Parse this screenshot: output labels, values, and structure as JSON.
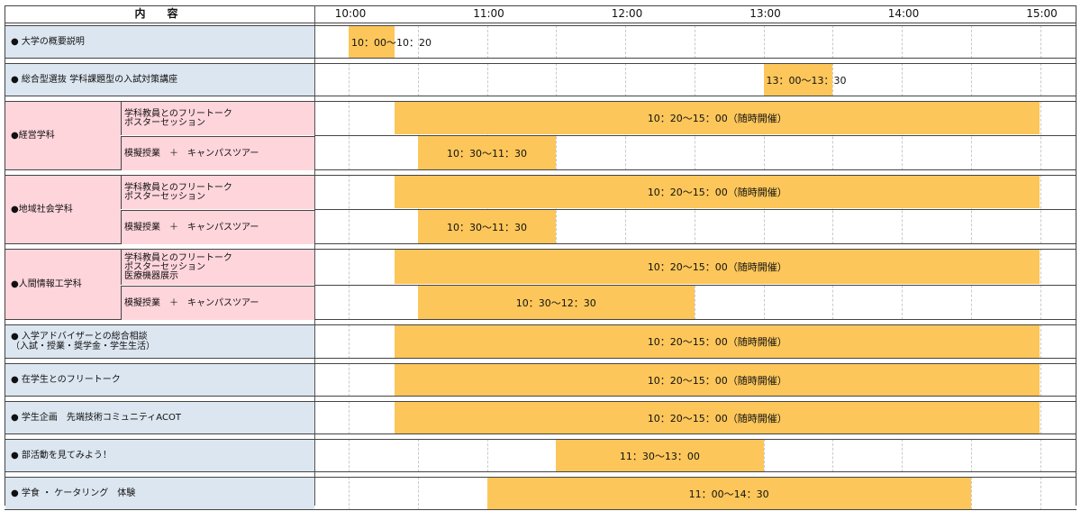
{
  "header": {
    "title": "内　容",
    "times": [
      "10:00",
      "11:00",
      "12:00",
      "13:00",
      "14:00",
      "15:00"
    ]
  },
  "rows": [
    {
      "label": "● 大学の概要説明",
      "color": "blue",
      "bars": [
        {
          "start": "10:00",
          "end": "10:20",
          "text": "10：00〜10：20"
        }
      ]
    },
    {
      "label": "● 総合型選抜 学科課題型の入試対策講座",
      "color": "blue",
      "bars": [
        {
          "start": "13:00",
          "end": "13:30",
          "text": "13：00〜13：30"
        }
      ]
    },
    {
      "label": "●経営学科",
      "color": "pink",
      "subrows": [
        {
          "label": "学科教員とのフリートーク\nポスターセッション",
          "bars": [
            {
              "start": "10:20",
              "end": "15:00",
              "text": "10：20〜15：00（随時開催）"
            }
          ]
        },
        {
          "label": "模擬授業　＋　キャンパスツアー",
          "bars": [
            {
              "start": "10:30",
              "end": "11:30",
              "text": "10：30〜11：30"
            }
          ]
        }
      ]
    },
    {
      "label": "●地域社会学科",
      "color": "pink",
      "subrows": [
        {
          "label": "学科教員とのフリートーク\nポスターセッション",
          "bars": [
            {
              "start": "10:20",
              "end": "15:00",
              "text": "10：20〜15：00（随時開催）"
            }
          ]
        },
        {
          "label": "模擬授業　＋　キャンパスツアー",
          "bars": [
            {
              "start": "10:30",
              "end": "11:30",
              "text": "10：30〜11：30"
            }
          ]
        }
      ]
    },
    {
      "label": "●人間情報工学科",
      "color": "pink",
      "subrows": [
        {
          "label": "学科教員とのフリートーク\nポスターセッション\n医療機器展示",
          "bars": [
            {
              "start": "10:20",
              "end": "15:00",
              "text": "10：20〜15：00（随時開催）"
            }
          ]
        },
        {
          "label": "模擬授業　＋　キャンパスツアー",
          "bars": [
            {
              "start": "10:30",
              "end": "12:30",
              "text": "10：30〜12：30"
            }
          ]
        }
      ]
    },
    {
      "label": "● 入学アドバイザーとの総合相談\n（入試・授業・奨学金・学生生活）",
      "color": "blue",
      "bars": [
        {
          "start": "10:20",
          "end": "15:00",
          "text": "10：20〜15：00（随時開催）"
        }
      ]
    },
    {
      "label": "● 在学生とのフリートーク",
      "color": "blue",
      "bars": [
        {
          "start": "10:20",
          "end": "15:00",
          "text": "10：20〜15：00（随時開催）"
        }
      ]
    },
    {
      "label": "● 学生企画　先端技術コミュニティACOT",
      "color": "blue",
      "bars": [
        {
          "start": "10:20",
          "end": "15:00",
          "text": "10：20〜15：00（随時開催）"
        }
      ]
    },
    {
      "label": "● 部活動を見てみよう！",
      "color": "blue",
      "bars": [
        {
          "start": "11:30",
          "end": "13:00",
          "text": "11：30〜13：00"
        }
      ]
    },
    {
      "label": "● 学食 ・ ケータリング　体験",
      "color": "blue",
      "bars": [
        {
          "start": "11:00",
          "end": "14:30",
          "text": "11：00〜14：30"
        }
      ]
    }
  ],
  "colors": {
    "bar": "#fcc65a",
    "label_blue": "#dce6f1",
    "label_pink": "#ffd5dc"
  }
}
